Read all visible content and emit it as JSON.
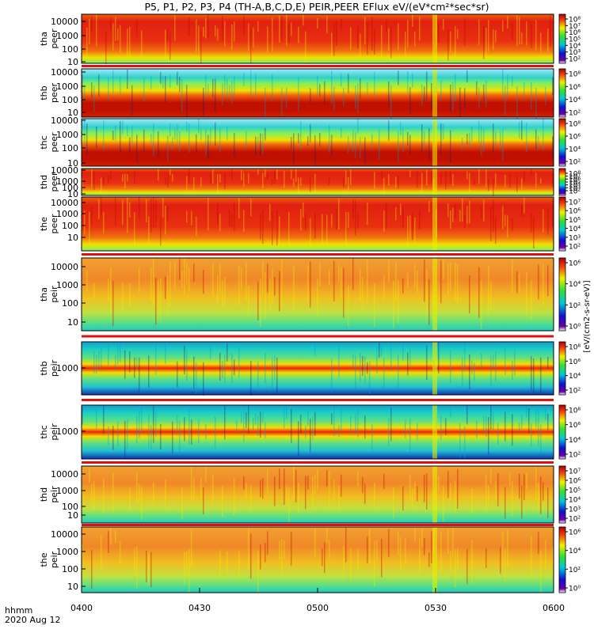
{
  "title": "P5, P1, P2, P3, P4 (TH-A,B,C,D,E) PEIR,PEER EFlux eV/(eV*cm²*sec*sr)",
  "colorbar_label": "[eV/(cm2-s-sr-eV)]",
  "colors": {
    "low": "#1010a0",
    "mid_low": "#00c0c0",
    "mid": "#40e040",
    "mid_high": "#f0f000",
    "high": "#f02010",
    "top": "#b00000"
  },
  "time_axis": {
    "label": "hhmm",
    "date": "2020 Aug 12",
    "ticks": [
      "0400",
      "0430",
      "0500",
      "0530",
      "0600"
    ],
    "range": [
      "04:00",
      "06:00"
    ]
  },
  "chart_data": [
    {
      "type": "heatmap",
      "name_top": "tha",
      "name_bottom": "peer",
      "yticks": [
        "10000",
        "1000",
        "100",
        "10"
      ],
      "scale": "log",
      "cbar_ticks": [
        "10⁸",
        "10⁷",
        "10⁶",
        "10⁵",
        "10⁴",
        "10³",
        "10²"
      ],
      "cbar_levels": [
        0,
        1,
        2,
        3,
        4,
        5,
        6
      ]
    },
    {
      "type": "heatmap",
      "name_top": "thb",
      "name_bottom": "peer",
      "yticks": [
        "10000",
        "1000",
        "100",
        "10"
      ],
      "scale": "log",
      "cbar_ticks": [
        "10⁸",
        "10⁶",
        "10⁴",
        "10²"
      ],
      "cbar_levels": [
        0,
        2,
        4,
        6
      ]
    },
    {
      "type": "heatmap",
      "name_top": "thc",
      "name_bottom": "peer",
      "yticks": [
        "10000",
        "1000",
        "100",
        "10"
      ],
      "scale": "log",
      "cbar_ticks": [
        "10⁸",
        "10⁶",
        "10⁴",
        "10²"
      ],
      "cbar_levels": [
        0,
        2,
        4,
        6
      ]
    },
    {
      "type": "heatmap",
      "name_top": "thd",
      "name_bottom": "peer",
      "yticks": [
        "10000",
        "1000",
        "100",
        "10"
      ],
      "scale": "log",
      "cbar_ticks": [
        "10⁸",
        "10⁷",
        "10⁶",
        "10⁵",
        "10⁴",
        "10³",
        "10²"
      ],
      "cbar_levels": [
        0,
        1,
        2,
        3,
        4,
        5,
        6
      ]
    },
    {
      "type": "heatmap",
      "name_top": "the",
      "name_bottom": "peer",
      "yticks": [
        "10000",
        "1000",
        "100",
        "10"
      ],
      "scale": "log",
      "cbar_ticks": [
        "10⁷",
        "10⁶",
        "10⁵",
        "10⁴",
        "10³",
        "10²"
      ],
      "cbar_levels": [
        0,
        1,
        2,
        3,
        4,
        5
      ]
    },
    {
      "type": "heatmap",
      "name_top": "tha",
      "name_bottom": "peir",
      "yticks": [
        "10000",
        "1000",
        "100",
        "10"
      ],
      "scale": "log",
      "cbar_ticks": [
        "10⁶",
        "10⁴",
        "10²",
        "10⁰"
      ],
      "cbar_levels": [
        0,
        2,
        4,
        6
      ]
    },
    {
      "type": "heatmap",
      "name_top": "thb",
      "name_bottom": "peir",
      "yticks": [
        "1000"
      ],
      "scale": "log",
      "cbar_ticks": [
        "10⁸",
        "10⁶",
        "10⁴",
        "10²"
      ],
      "cbar_levels": [
        0,
        2,
        4,
        6
      ]
    },
    {
      "type": "heatmap",
      "name_top": "thc",
      "name_bottom": "peir",
      "yticks": [
        "1000"
      ],
      "scale": "log",
      "cbar_ticks": [
        "10⁸",
        "10⁶",
        "10⁴",
        "10²"
      ],
      "cbar_levels": [
        0,
        2,
        4,
        6
      ]
    },
    {
      "type": "heatmap",
      "name_top": "thd",
      "name_bottom": "peir",
      "yticks": [
        "10000",
        "1000",
        "100",
        "10"
      ],
      "scale": "log",
      "cbar_ticks": [
        "10⁷",
        "10⁶",
        "10⁵",
        "10⁴",
        "10³",
        "10²"
      ],
      "cbar_levels": [
        0,
        1,
        2,
        3,
        4,
        5
      ]
    },
    {
      "type": "heatmap",
      "name_top": "the",
      "name_bottom": "peir",
      "yticks": [
        "10000",
        "1000",
        "100",
        "10"
      ],
      "scale": "log",
      "cbar_ticks": [
        "10⁶",
        "10⁴",
        "10²",
        "10⁰"
      ],
      "cbar_levels": [
        0,
        2,
        4,
        6
      ]
    }
  ]
}
